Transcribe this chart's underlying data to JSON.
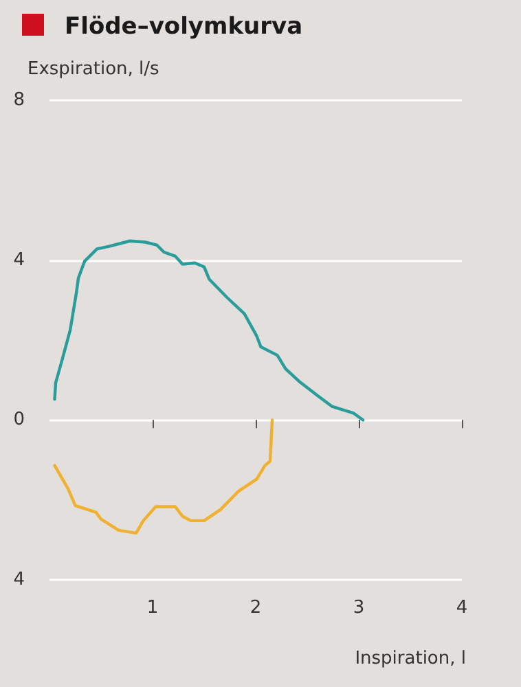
{
  "chart_data": {
    "type": "line",
    "title": "Flöde–volymkurva",
    "xlabel": "Inspiration, l",
    "ylabel": "Exspiration, l/s",
    "xlim": [
      0,
      4
    ],
    "xticks": [
      1,
      2,
      3,
      4
    ],
    "ylim": [
      -4,
      8
    ],
    "yticks": [
      {
        "value": -4,
        "label": "4"
      },
      0,
      4,
      8
    ],
    "grid": "y",
    "marker": "none",
    "line_style": "solid",
    "series": [
      {
        "color": "#2a9d9a",
        "x": [
          0.05,
          0.06,
          0.12,
          0.2,
          0.26,
          0.28,
          0.34,
          0.46,
          0.57,
          0.78,
          0.93,
          1.04,
          1.11,
          1.22,
          1.29,
          1.41,
          1.5,
          1.55,
          1.72,
          1.89,
          2.01,
          2.05,
          2.21,
          2.29,
          2.42,
          2.61,
          2.74,
          2.95,
          3.04
        ],
        "values": [
          0.52,
          0.93,
          1.48,
          2.24,
          3.17,
          3.55,
          3.97,
          4.28,
          4.34,
          4.48,
          4.45,
          4.38,
          4.2,
          4.1,
          3.9,
          3.93,
          3.83,
          3.52,
          3.07,
          2.66,
          2.1,
          1.83,
          1.62,
          1.28,
          0.97,
          0.59,
          0.34,
          0.17,
          0
        ]
      },
      {
        "color": "#f0b030",
        "x": [
          0.05,
          0.18,
          0.25,
          0.45,
          0.5,
          0.67,
          0.84,
          0.91,
          1.03,
          1.22,
          1.29,
          1.37,
          1.5,
          1.66,
          1.83,
          2.01,
          2.09,
          2.14,
          2.16
        ],
        "values": [
          -1.14,
          -1.72,
          -2.14,
          -2.31,
          -2.48,
          -2.76,
          -2.83,
          -2.52,
          -2.17,
          -2.17,
          -2.41,
          -2.52,
          -2.52,
          -2.24,
          -1.79,
          -1.48,
          -1.14,
          -1.03,
          0
        ]
      }
    ]
  }
}
